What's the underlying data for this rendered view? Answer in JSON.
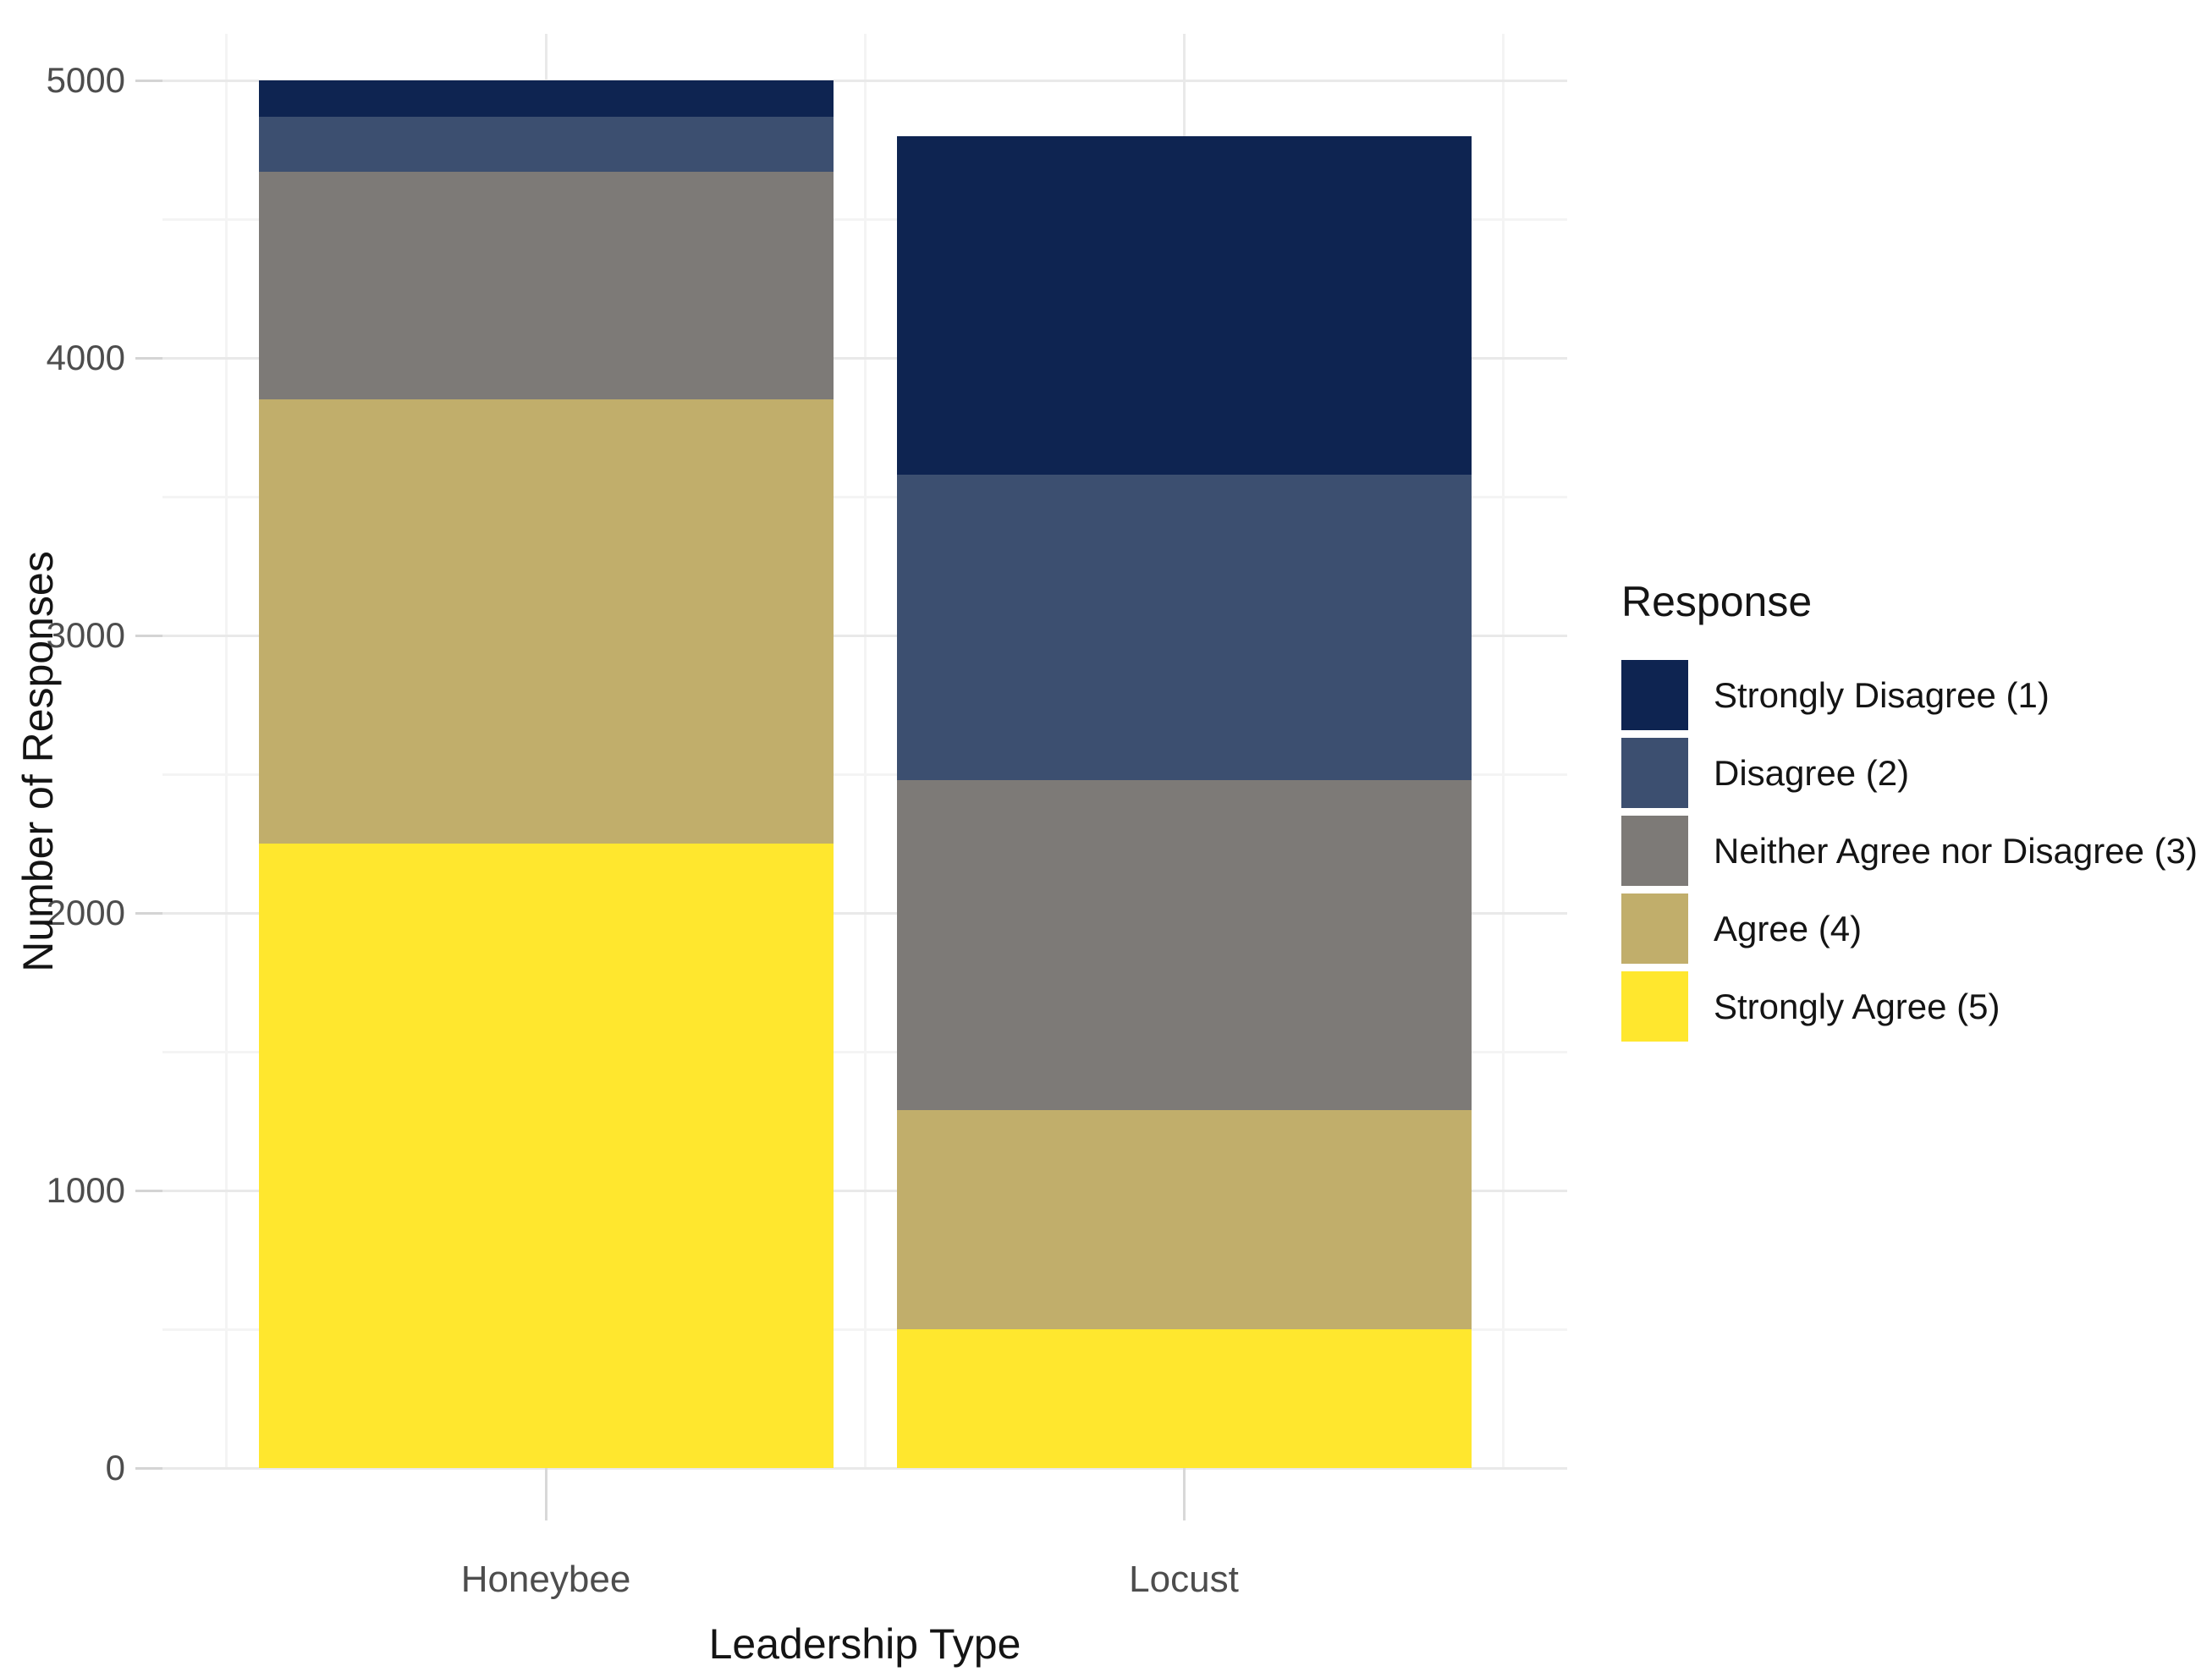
{
  "chart_data": {
    "type": "bar",
    "stacked": true,
    "title": "",
    "xlabel": "Leadership Type",
    "ylabel": "Number of Responses",
    "categories": [
      "Honeybee",
      "Locust"
    ],
    "series": [
      {
        "name": "Strongly Disagree (1)",
        "color": "#0e2451",
        "values": [
          130,
          1220
        ]
      },
      {
        "name": "Disagree (2)",
        "color": "#3c4f70",
        "values": [
          200,
          1100
        ]
      },
      {
        "name": "Neither Agree nor Disagree (3)",
        "color": "#7d7a77",
        "values": [
          820,
          1190
        ]
      },
      {
        "name": "Agree (4)",
        "color": "#c1ae6b",
        "values": [
          1600,
          790
        ]
      },
      {
        "name": "Strongly Agree (5)",
        "color": "#ffe72e",
        "values": [
          2250,
          500
        ]
      }
    ],
    "stack_order": "first series on top of stack; last series at bottom",
    "category_totals": [
      5000,
      4800
    ],
    "y_ticks": [
      0,
      1000,
      2000,
      3000,
      4000,
      5000
    ],
    "y_minor_gridlines": [
      500,
      1500,
      2500,
      3500,
      4500
    ],
    "ylim": [
      0,
      5100
    ],
    "grid": true,
    "legend_title": "Response",
    "legend_position": "right",
    "background_color": "#ffffff"
  }
}
